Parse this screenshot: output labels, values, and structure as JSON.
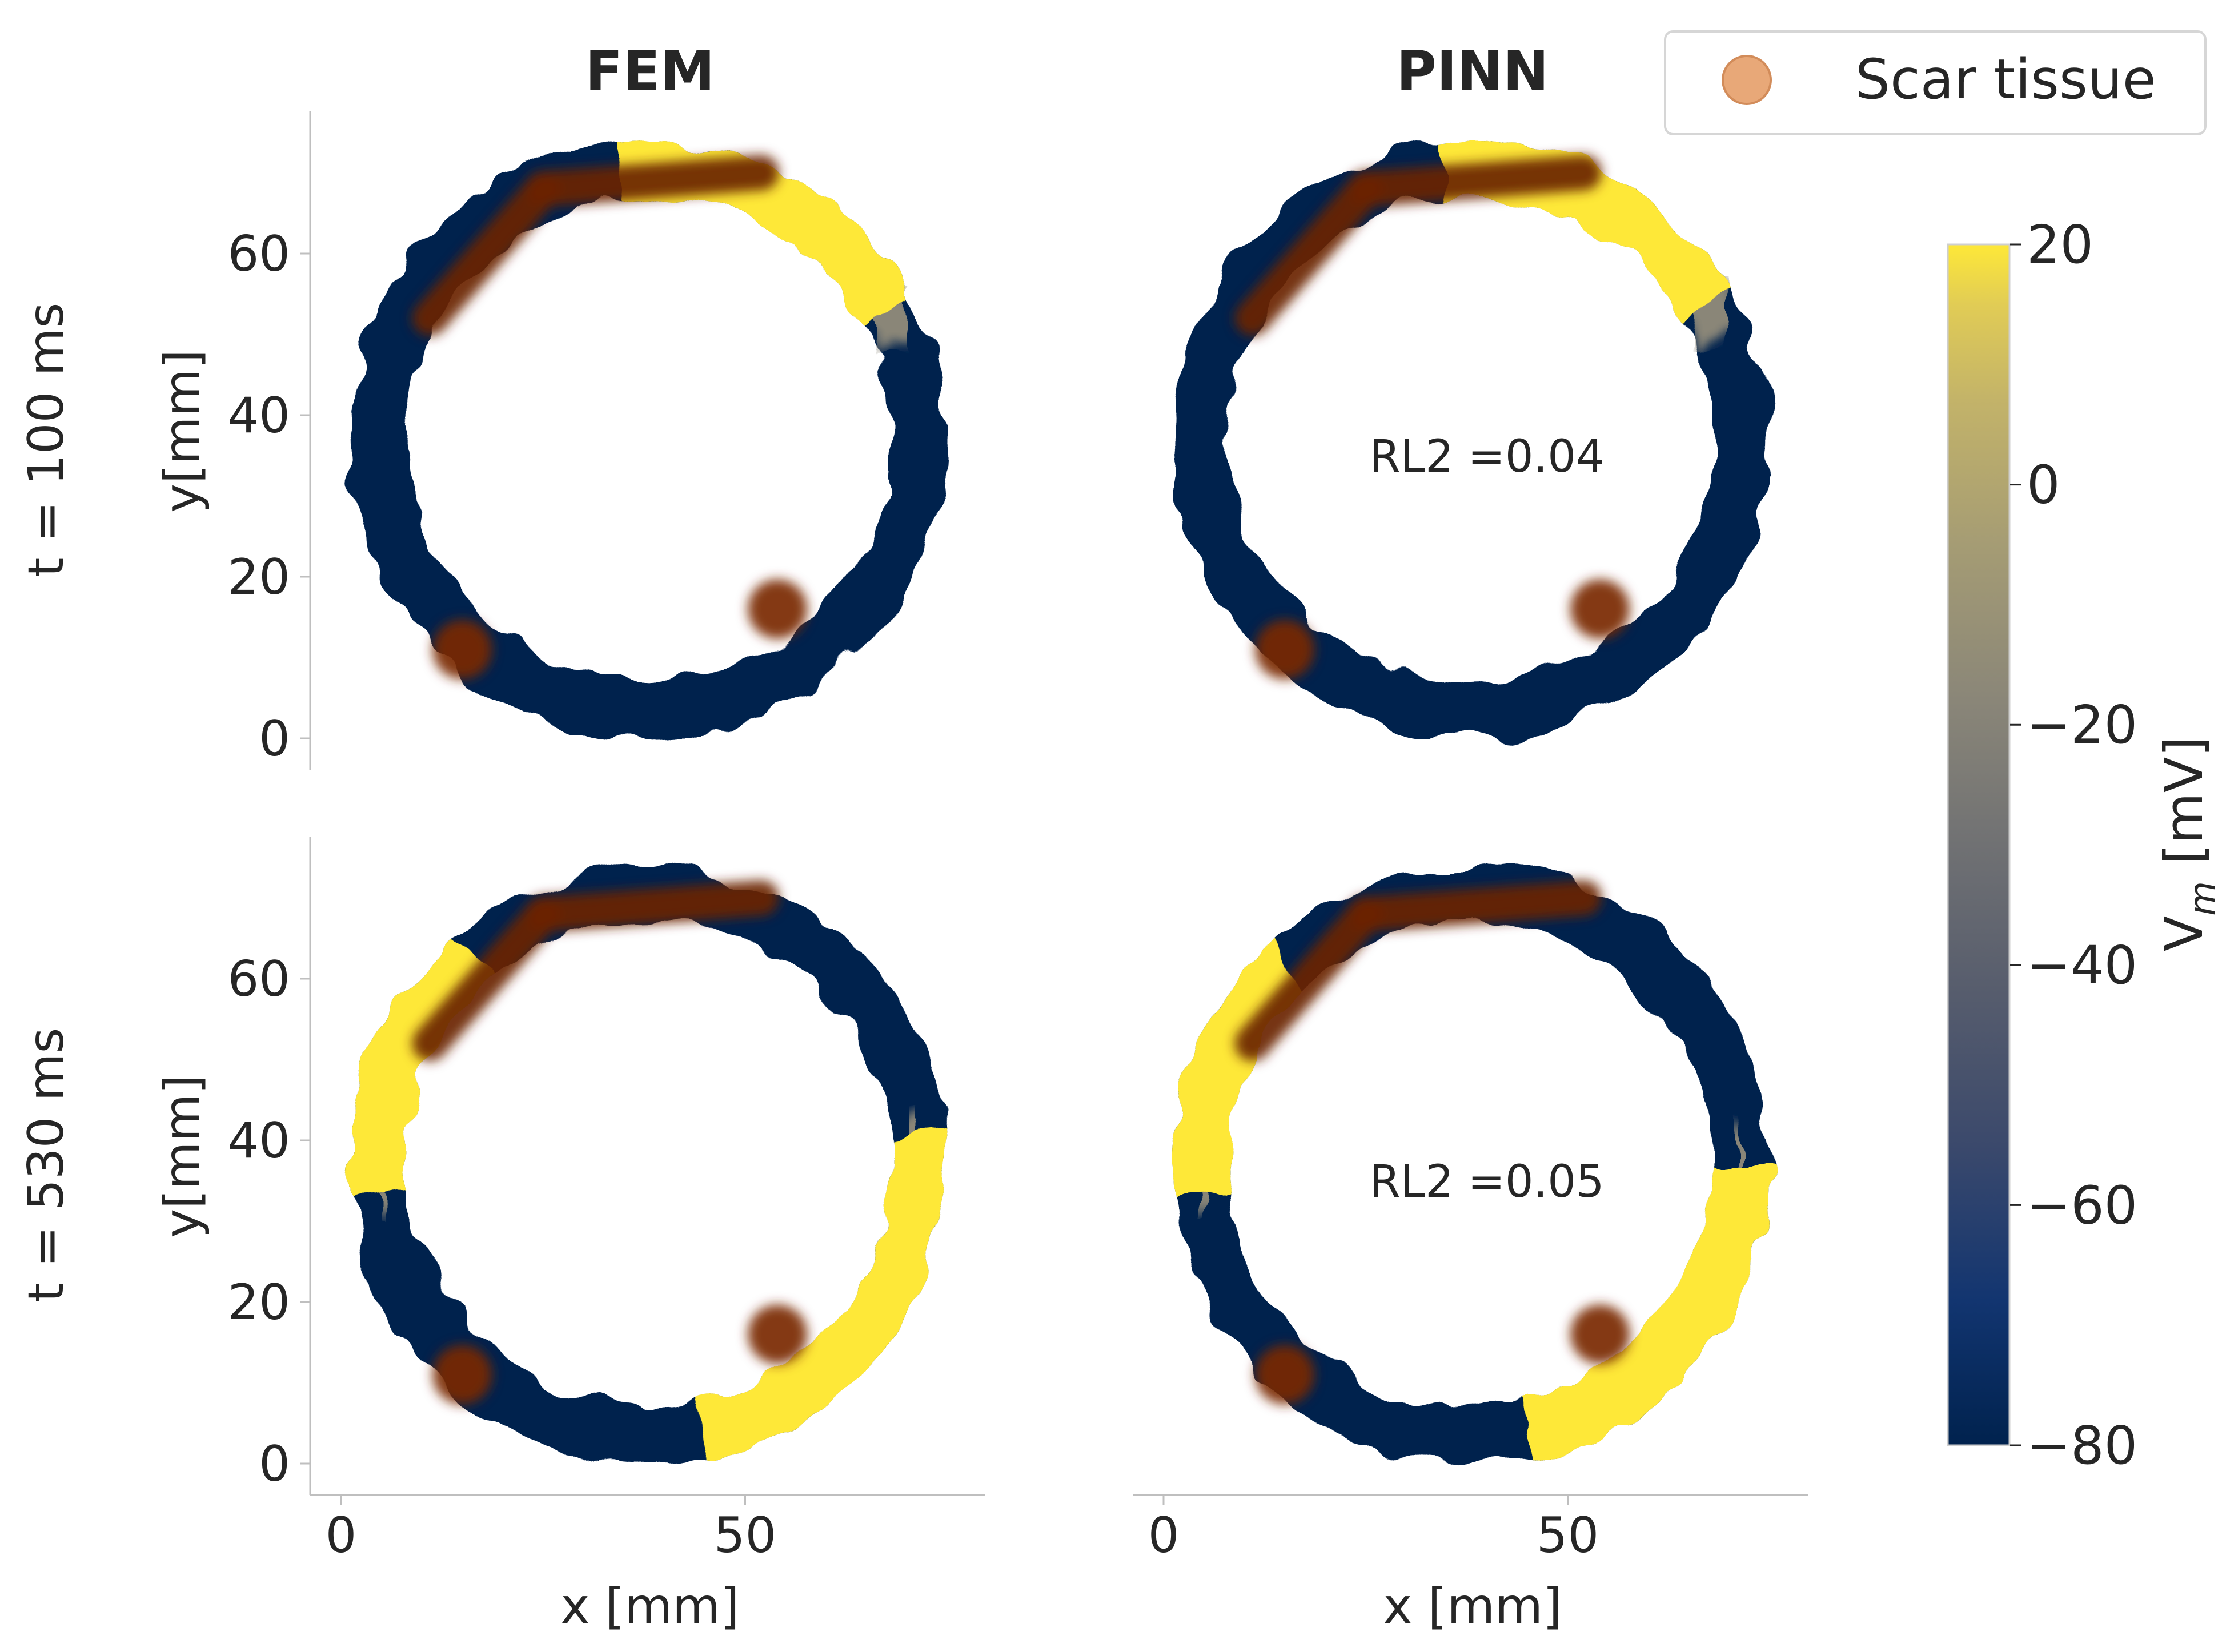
{
  "figure": {
    "columns": [
      "FEM",
      "PINN"
    ],
    "rows": [
      "t = 100 ms",
      "t = 530 ms"
    ],
    "xlabel": "x [mm]",
    "ylabel": "y[mm]",
    "legend": {
      "label": "Scar tissue",
      "color": "#e8a878",
      "position": "top-right"
    }
  },
  "chart_data": {
    "type": "heatmap",
    "description_of_panels": "2x2 grid: rows = time, columns = method",
    "xlim": [
      -4,
      80
    ],
    "ylim": [
      -4,
      77
    ],
    "xticks": [
      0,
      50
    ],
    "yticks": [
      0,
      20,
      40,
      60
    ],
    "colorbar": {
      "label": "V_m [mV]",
      "range": [
        -80,
        20
      ],
      "ticks": [
        20,
        0,
        -20,
        -40,
        -60,
        -80
      ],
      "tick_labels": [
        "20",
        "0",
        "−20",
        "−40",
        "−60",
        "−80"
      ],
      "colormap": [
        "#00224e",
        "#123570",
        "#3b496c",
        "#575d6d",
        "#707173",
        "#8a8678",
        "#a59c74",
        "#c3b369",
        "#e1cc55",
        "#fee838"
      ]
    },
    "ring": {
      "center": [
        38,
        37
      ],
      "inner_radius": 30,
      "outer_radius": 37
    },
    "scar_regions": [
      {
        "shape": "band",
        "from": [
          11,
          52
        ],
        "to": [
          25,
          68
        ]
      },
      {
        "shape": "band",
        "from": [
          25,
          68
        ],
        "to": [
          52,
          70
        ]
      },
      {
        "shape": "blob",
        "center": [
          15,
          11
        ]
      },
      {
        "shape": "blob",
        "center": [
          54,
          16
        ]
      }
    ],
    "panels": [
      {
        "row": "t = 100 ms",
        "column": "FEM",
        "rl2": "",
        "depolarized_arc_angles_deg": [
          [
            28,
            96
          ]
        ],
        "gradient_arc_angles_deg": [
          [
            20,
            32
          ]
        ]
      },
      {
        "row": "t = 100 ms",
        "column": "PINN",
        "rl2": "RL2 =0.04",
        "depolarized_arc_angles_deg": [
          [
            30,
            96
          ]
        ],
        "gradient_arc_angles_deg": [
          [
            22,
            34
          ]
        ]
      },
      {
        "row": "t = 530 ms",
        "column": "FEM",
        "rl2": "",
        "depolarized_arc_angles_deg": [
          [
            -78,
            6
          ],
          [
            130,
            186
          ]
        ],
        "gradient_arc_angles_deg": [
          [
            2,
            10
          ],
          [
            184,
            190
          ]
        ]
      },
      {
        "row": "t = 530 ms",
        "column": "PINN",
        "rl2": "RL2 =0.05",
        "depolarized_arc_angles_deg": [
          [
            -78,
            0
          ],
          [
            132,
            186
          ]
        ],
        "gradient_arc_angles_deg": [
          [
            -4,
            8
          ],
          [
            184,
            190
          ]
        ]
      }
    ]
  }
}
